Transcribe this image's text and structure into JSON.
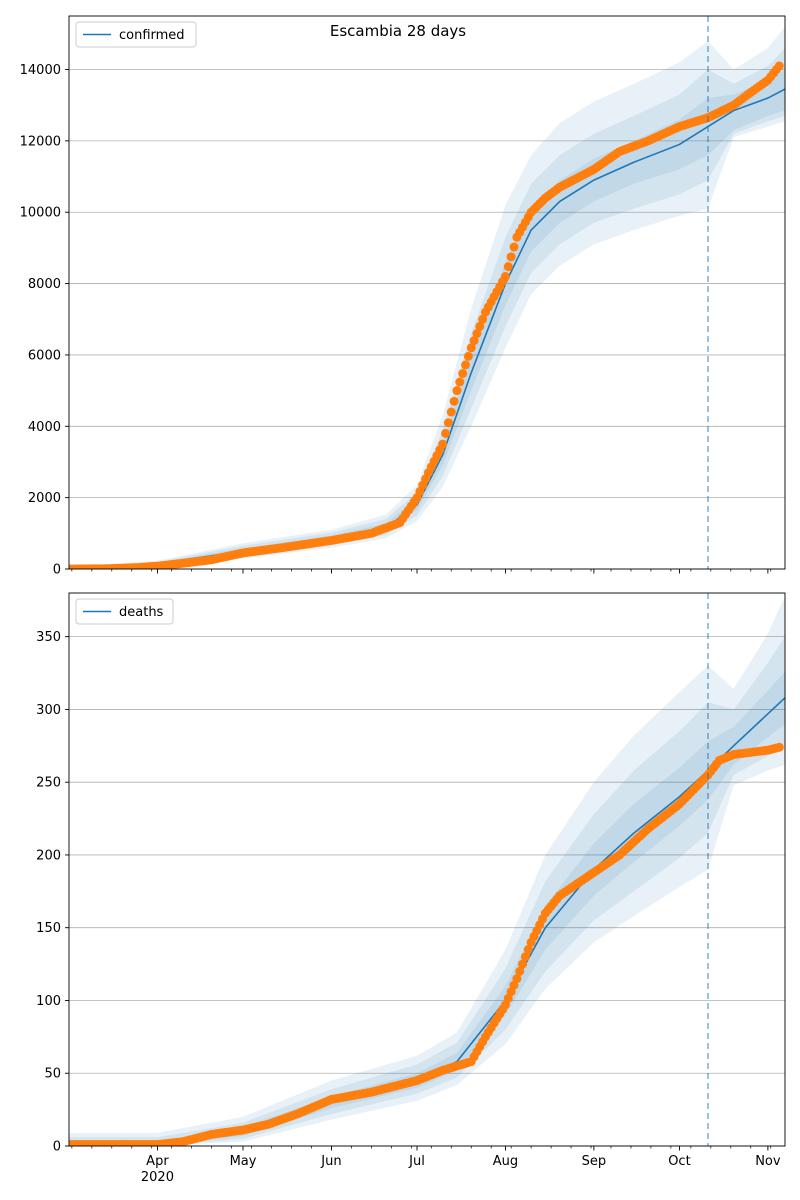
{
  "figure": {
    "title": "Escambia 28 days"
  },
  "colors": {
    "line": "#1f77b4",
    "points": "#ff7f0e",
    "band": "#1f77b4",
    "grid": "#b0b0b0",
    "vline": "#1f77b4"
  },
  "x_axis": {
    "start_date": "2020-03-01",
    "end_date": "2020-11-07",
    "month_ticks": [
      {
        "date": "2020-04-01",
        "label": "Apr",
        "sublabel": "2020"
      },
      {
        "date": "2020-05-01",
        "label": "May",
        "sublabel": ""
      },
      {
        "date": "2020-06-01",
        "label": "Jun",
        "sublabel": ""
      },
      {
        "date": "2020-07-01",
        "label": "Jul",
        "sublabel": ""
      },
      {
        "date": "2020-08-01",
        "label": "Aug",
        "sublabel": ""
      },
      {
        "date": "2020-09-01",
        "label": "Sep",
        "sublabel": ""
      },
      {
        "date": "2020-10-01",
        "label": "Oct",
        "sublabel": ""
      },
      {
        "date": "2020-11-01",
        "label": "Nov",
        "sublabel": ""
      }
    ],
    "forecast_start": "2020-10-11"
  },
  "chart_data": [
    {
      "type": "line",
      "legend": "confirmed",
      "legend_position": "top-left",
      "grid": "horizontal",
      "ylim": [
        0,
        15500
      ],
      "yticks": [
        "0",
        "2000",
        "4000",
        "6000",
        "8000",
        "10000",
        "12000",
        "14000"
      ],
      "ytick_values": [
        0,
        2000,
        4000,
        6000,
        8000,
        10000,
        12000,
        14000
      ],
      "observed": [
        {
          "date": "2020-03-01",
          "value": 0
        },
        {
          "date": "2020-03-15",
          "value": 10
        },
        {
          "date": "2020-03-25",
          "value": 40
        },
        {
          "date": "2020-04-01",
          "value": 80
        },
        {
          "date": "2020-04-10",
          "value": 160
        },
        {
          "date": "2020-04-20",
          "value": 260
        },
        {
          "date": "2020-05-01",
          "value": 450
        },
        {
          "date": "2020-05-15",
          "value": 600
        },
        {
          "date": "2020-06-01",
          "value": 800
        },
        {
          "date": "2020-06-15",
          "value": 1000
        },
        {
          "date": "2020-06-25",
          "value": 1300
        },
        {
          "date": "2020-07-01",
          "value": 2000
        },
        {
          "date": "2020-07-05",
          "value": 2700
        },
        {
          "date": "2020-07-10",
          "value": 3500
        },
        {
          "date": "2020-07-15",
          "value": 5000
        },
        {
          "date": "2020-07-20",
          "value": 6200
        },
        {
          "date": "2020-07-25",
          "value": 7200
        },
        {
          "date": "2020-08-01",
          "value": 8200
        },
        {
          "date": "2020-08-05",
          "value": 9300
        },
        {
          "date": "2020-08-10",
          "value": 10000
        },
        {
          "date": "2020-08-15",
          "value": 10400
        },
        {
          "date": "2020-08-20",
          "value": 10700
        },
        {
          "date": "2020-09-01",
          "value": 11200
        },
        {
          "date": "2020-09-10",
          "value": 11700
        },
        {
          "date": "2020-09-20",
          "value": 12000
        },
        {
          "date": "2020-10-01",
          "value": 12400
        },
        {
          "date": "2020-10-11",
          "value": 12650
        },
        {
          "date": "2020-10-20",
          "value": 13000
        },
        {
          "date": "2020-10-25",
          "value": 13300
        },
        {
          "date": "2020-11-01",
          "value": 13700
        },
        {
          "date": "2020-11-05",
          "value": 14100
        }
      ],
      "model": [
        {
          "date": "2020-03-01",
          "value": 0
        },
        {
          "date": "2020-04-01",
          "value": 150
        },
        {
          "date": "2020-05-01",
          "value": 500
        },
        {
          "date": "2020-06-01",
          "value": 850
        },
        {
          "date": "2020-06-20",
          "value": 1150
        },
        {
          "date": "2020-07-01",
          "value": 1800
        },
        {
          "date": "2020-07-10",
          "value": 3200
        },
        {
          "date": "2020-07-20",
          "value": 5500
        },
        {
          "date": "2020-08-01",
          "value": 8000
        },
        {
          "date": "2020-08-10",
          "value": 9500
        },
        {
          "date": "2020-08-20",
          "value": 10300
        },
        {
          "date": "2020-09-01",
          "value": 10900
        },
        {
          "date": "2020-09-15",
          "value": 11400
        },
        {
          "date": "2020-10-01",
          "value": 11900
        },
        {
          "date": "2020-10-11",
          "value": 12400
        },
        {
          "date": "2020-10-20",
          "value": 12850
        },
        {
          "date": "2020-11-01",
          "value": 13200
        },
        {
          "date": "2020-11-07",
          "value": 13450
        }
      ],
      "bands": [
        {
          "dates": [
            "2020-03-01",
            "2020-04-01",
            "2020-05-01",
            "2020-06-01",
            "2020-06-20",
            "2020-07-01",
            "2020-07-10",
            "2020-07-20",
            "2020-08-01",
            "2020-08-10",
            "2020-08-20",
            "2020-09-01",
            "2020-09-15",
            "2020-10-01",
            "2020-10-11",
            "2020-10-20",
            "2020-11-01",
            "2020-11-07"
          ],
          "lower": [
            0,
            130,
            420,
            760,
            1050,
            1650,
            2900,
            5000,
            7400,
            8900,
            9700,
            10300,
            10800,
            11200,
            11600,
            12300,
            12700,
            12850
          ],
          "upper": [
            20,
            170,
            580,
            940,
            1280,
            1980,
            3500,
            6000,
            8600,
            10100,
            10900,
            11500,
            12000,
            12600,
            13200,
            13300,
            13700,
            14000
          ]
        },
        {
          "dates": [
            "2020-03-01",
            "2020-04-01",
            "2020-05-01",
            "2020-06-01",
            "2020-06-20",
            "2020-07-01",
            "2020-07-10",
            "2020-07-20",
            "2020-08-01",
            "2020-08-10",
            "2020-08-20",
            "2020-09-01",
            "2020-09-15",
            "2020-10-01",
            "2020-10-11",
            "2020-10-20",
            "2020-11-01",
            "2020-11-07"
          ],
          "lower": [
            0,
            110,
            360,
            680,
            950,
            1500,
            2600,
            4500,
            6800,
            8300,
            9100,
            9700,
            10100,
            10500,
            10900,
            12200,
            12550,
            12700
          ],
          "upper": [
            40,
            200,
            650,
            1020,
            1400,
            2150,
            3900,
            6600,
            9300,
            10800,
            11600,
            12200,
            12700,
            13300,
            14000,
            13600,
            14100,
            14600
          ]
        },
        {
          "dates": [
            "2020-03-01",
            "2020-04-01",
            "2020-05-01",
            "2020-06-01",
            "2020-06-20",
            "2020-07-01",
            "2020-07-10",
            "2020-07-20",
            "2020-08-01",
            "2020-08-10",
            "2020-08-20",
            "2020-09-01",
            "2020-09-15",
            "2020-10-01",
            "2020-10-11",
            "2020-10-20",
            "2020-11-01",
            "2020-11-07"
          ],
          "lower": [
            0,
            90,
            300,
            600,
            860,
            1350,
            2300,
            4000,
            6200,
            7700,
            8500,
            9100,
            9500,
            9900,
            10100,
            12100,
            12400,
            12550
          ],
          "upper": [
            60,
            230,
            720,
            1100,
            1520,
            2350,
            4300,
            7300,
            10200,
            11600,
            12500,
            13100,
            13600,
            14200,
            14800,
            14000,
            14600,
            15200
          ]
        }
      ]
    },
    {
      "type": "line",
      "legend": "deaths",
      "legend_position": "top-left",
      "grid": "horizontal",
      "ylim": [
        0,
        380
      ],
      "yticks": [
        "0",
        "50",
        "100",
        "150",
        "200",
        "250",
        "300",
        "350"
      ],
      "ytick_values": [
        0,
        50,
        100,
        150,
        200,
        250,
        300,
        350
      ],
      "observed": [
        {
          "date": "2020-03-01",
          "value": 1
        },
        {
          "date": "2020-04-01",
          "value": 1
        },
        {
          "date": "2020-04-10",
          "value": 3
        },
        {
          "date": "2020-04-20",
          "value": 8
        },
        {
          "date": "2020-05-01",
          "value": 11
        },
        {
          "date": "2020-05-10",
          "value": 15
        },
        {
          "date": "2020-05-20",
          "value": 22
        },
        {
          "date": "2020-06-01",
          "value": 32
        },
        {
          "date": "2020-06-15",
          "value": 37
        },
        {
          "date": "2020-07-01",
          "value": 45
        },
        {
          "date": "2020-07-10",
          "value": 52
        },
        {
          "date": "2020-07-20",
          "value": 58
        },
        {
          "date": "2020-07-25",
          "value": 75
        },
        {
          "date": "2020-08-01",
          "value": 97
        },
        {
          "date": "2020-08-05",
          "value": 115
        },
        {
          "date": "2020-08-10",
          "value": 140
        },
        {
          "date": "2020-08-15",
          "value": 160
        },
        {
          "date": "2020-08-20",
          "value": 172
        },
        {
          "date": "2020-09-01",
          "value": 188
        },
        {
          "date": "2020-09-10",
          "value": 200
        },
        {
          "date": "2020-09-20",
          "value": 218
        },
        {
          "date": "2020-10-01",
          "value": 235
        },
        {
          "date": "2020-10-11",
          "value": 255
        },
        {
          "date": "2020-10-15",
          "value": 265
        },
        {
          "date": "2020-10-20",
          "value": 269
        },
        {
          "date": "2020-11-01",
          "value": 272
        },
        {
          "date": "2020-11-05",
          "value": 274
        }
      ],
      "model": [
        {
          "date": "2020-03-01",
          "value": 0
        },
        {
          "date": "2020-04-01",
          "value": 1
        },
        {
          "date": "2020-05-01",
          "value": 10
        },
        {
          "date": "2020-06-01",
          "value": 30
        },
        {
          "date": "2020-07-01",
          "value": 45
        },
        {
          "date": "2020-07-15",
          "value": 58
        },
        {
          "date": "2020-08-01",
          "value": 100
        },
        {
          "date": "2020-08-15",
          "value": 150
        },
        {
          "date": "2020-09-01",
          "value": 190
        },
        {
          "date": "2020-09-15",
          "value": 215
        },
        {
          "date": "2020-10-01",
          "value": 240
        },
        {
          "date": "2020-10-11",
          "value": 258
        },
        {
          "date": "2020-10-20",
          "value": 275
        },
        {
          "date": "2020-11-01",
          "value": 297
        },
        {
          "date": "2020-11-07",
          "value": 308
        }
      ],
      "bands": [
        {
          "dates": [
            "2020-03-01",
            "2020-04-01",
            "2020-05-01",
            "2020-06-01",
            "2020-07-01",
            "2020-07-15",
            "2020-08-01",
            "2020-08-15",
            "2020-09-01",
            "2020-09-15",
            "2020-10-01",
            "2020-10-11",
            "2020-10-20",
            "2020-11-01",
            "2020-11-07"
          ],
          "lower": [
            0,
            0,
            7,
            26,
            40,
            52,
            90,
            135,
            172,
            195,
            220,
            238,
            262,
            281,
            290
          ],
          "upper": [
            3,
            3,
            13,
            34,
            50,
            64,
            110,
            165,
            208,
            235,
            260,
            278,
            288,
            313,
            326
          ]
        },
        {
          "dates": [
            "2020-03-01",
            "2020-04-01",
            "2020-05-01",
            "2020-06-01",
            "2020-07-01",
            "2020-07-15",
            "2020-08-01",
            "2020-08-15",
            "2020-09-01",
            "2020-09-15",
            "2020-10-01",
            "2020-10-11",
            "2020-10-20",
            "2020-11-01",
            "2020-11-07"
          ],
          "lower": [
            0,
            0,
            5,
            22,
            36,
            47,
            80,
            120,
            155,
            175,
            198,
            215,
            255,
            268,
            275
          ],
          "upper": [
            6,
            6,
            16,
            39,
            56,
            71,
            122,
            182,
            228,
            258,
            285,
            305,
            300,
            332,
            350
          ]
        },
        {
          "dates": [
            "2020-03-01",
            "2020-04-01",
            "2020-05-01",
            "2020-06-01",
            "2020-07-01",
            "2020-07-15",
            "2020-08-01",
            "2020-08-15",
            "2020-09-01",
            "2020-09-15",
            "2020-10-01",
            "2020-10-11",
            "2020-10-20",
            "2020-11-01",
            "2020-11-07"
          ],
          "lower": [
            0,
            0,
            3,
            18,
            31,
            42,
            70,
            108,
            140,
            158,
            178,
            190,
            248,
            258,
            262
          ],
          "upper": [
            9,
            9,
            20,
            45,
            62,
            78,
            135,
            200,
            250,
            282,
            312,
            330,
            314,
            352,
            378
          ]
        }
      ]
    }
  ]
}
